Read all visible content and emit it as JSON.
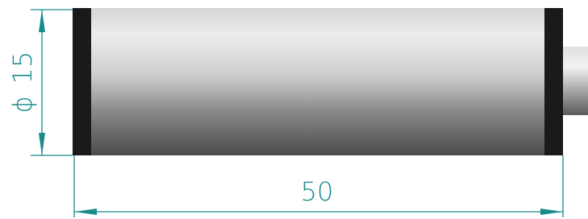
{
  "dimensions": {
    "diameter": {
      "symbol": "ϕ",
      "value": "15"
    },
    "length": {
      "value": "50"
    }
  }
}
